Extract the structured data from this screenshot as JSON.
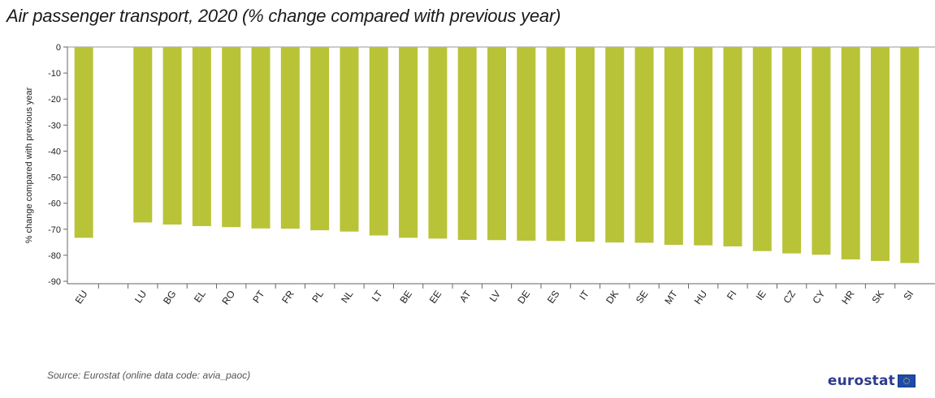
{
  "title": "Air passenger transport, 2020 (% change compared with previous year)",
  "source": "Source: Eurostat (online data code: avia_paoc)",
  "logo_text": "eurostat",
  "colors": {
    "bar": "#b9c337",
    "axis": "#666666",
    "grid": "#9a9a9a"
  },
  "chart_data": {
    "type": "bar",
    "ylabel": "% change compared with previous year",
    "xlabel": "",
    "ylim": [
      -90,
      0
    ],
    "yticks": [
      0,
      -10,
      -20,
      -30,
      -40,
      -50,
      -60,
      -70,
      -80,
      -90
    ],
    "categories": [
      "EU",
      "",
      "LU",
      "BG",
      "EL",
      "RO",
      "PT",
      "FR",
      "PL",
      "NL",
      "LT",
      "BE",
      "EE",
      "AT",
      "LV",
      "DE",
      "ES",
      "IT",
      "DK",
      "SE",
      "MT",
      "HU",
      "FI",
      "IE",
      "CZ",
      "CY",
      "HR",
      "SK",
      "SI"
    ],
    "values": [
      -73.3,
      null,
      -67.4,
      -68.2,
      -68.8,
      -69.2,
      -69.7,
      -69.8,
      -70.4,
      -70.9,
      -72.4,
      -73.3,
      -73.6,
      -74.1,
      -74.2,
      -74.4,
      -74.5,
      -74.8,
      -75.1,
      -75.2,
      -76.0,
      -76.2,
      -76.6,
      -78.4,
      -79.3,
      -79.8,
      -81.6,
      -82.2,
      -83.0
    ]
  }
}
